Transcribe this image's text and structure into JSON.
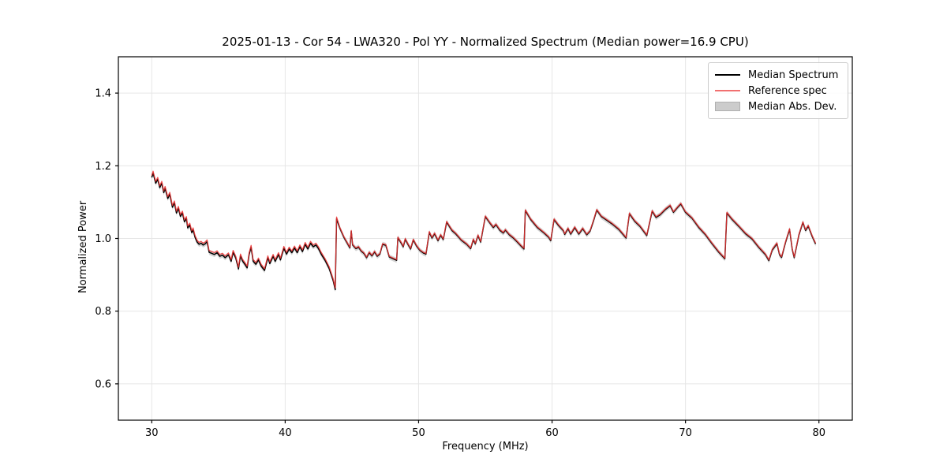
{
  "figure": {
    "title": "2025-01-13 - Cor 54 - LWA320 - Pol YY - Normalized Spectrum (Median power=16.9 CPU)"
  },
  "legend": {
    "items": [
      {
        "label": "Median Spectrum",
        "sample": "line",
        "color": "#000000"
      },
      {
        "label": "Reference spec",
        "sample": "line",
        "color": "#f17070"
      },
      {
        "label": "Median Abs. Dev.",
        "sample": "patch",
        "color": "#cccccc"
      }
    ]
  },
  "colors": {
    "median_line": "#000000",
    "reference_line": "#ee3333",
    "mad_band": "#bdbdbd",
    "grid": "#e6e6e6",
    "spine": "#000000",
    "background": "#ffffff"
  },
  "chart_data": {
    "type": "line",
    "title": "2025-01-13 - Cor 54 - LWA320 - Pol YY - Normalized Spectrum (Median power=16.9 CPU)",
    "xlabel": "Frequency (MHz)",
    "ylabel": "Normalized Power",
    "xlim": [
      27.5,
      82.5
    ],
    "ylim": [
      0.5,
      1.5
    ],
    "xticks": [
      30,
      40,
      50,
      60,
      70,
      80
    ],
    "yticks": [
      0.6,
      0.8,
      1.0,
      1.2,
      1.4
    ],
    "grid": true,
    "legend_position": "upper right",
    "series": [
      {
        "name": "Median Spectrum",
        "type": "line",
        "x": [
          30.0,
          30.1,
          30.3,
          30.45,
          30.6,
          30.75,
          30.9,
          31.0,
          31.2,
          31.35,
          31.55,
          31.7,
          31.85,
          32.0,
          32.15,
          32.3,
          32.45,
          32.6,
          32.7,
          32.85,
          33.0,
          33.1,
          33.25,
          33.4,
          33.55,
          33.7,
          33.85,
          34.0,
          34.15,
          34.3,
          34.5,
          34.7,
          34.9,
          35.1,
          35.3,
          35.5,
          35.75,
          35.95,
          36.1,
          36.3,
          36.5,
          36.65,
          36.8,
          37.0,
          37.15,
          37.3,
          37.45,
          37.6,
          37.8,
          38.0,
          38.2,
          38.45,
          38.7,
          38.85,
          39.1,
          39.25,
          39.5,
          39.65,
          39.9,
          40.1,
          40.3,
          40.5,
          40.7,
          40.9,
          41.1,
          41.3,
          41.5,
          41.7,
          41.9,
          42.1,
          42.3,
          42.5,
          42.7,
          43.0,
          43.3,
          43.6,
          43.75,
          43.85,
          44.1,
          44.4,
          44.7,
          44.85,
          44.95,
          45.05,
          45.3,
          45.5,
          45.7,
          45.9,
          46.1,
          46.3,
          46.5,
          46.7,
          46.9,
          47.1,
          47.3,
          47.55,
          47.8,
          48.1,
          48.35,
          48.45,
          48.7,
          48.85,
          49.0,
          49.2,
          49.4,
          49.6,
          49.85,
          50.1,
          50.35,
          50.55,
          50.8,
          51.0,
          51.2,
          51.45,
          51.65,
          51.85,
          52.1,
          52.5,
          52.8,
          53.2,
          53.6,
          53.9,
          54.1,
          54.25,
          54.45,
          54.65,
          55.0,
          55.35,
          55.6,
          55.8,
          56.1,
          56.35,
          56.5,
          56.8,
          57.1,
          57.4,
          57.7,
          57.9,
          58.0,
          58.4,
          58.9,
          59.4,
          59.75,
          59.9,
          60.15,
          60.5,
          60.85,
          60.95,
          61.2,
          61.4,
          61.7,
          62.0,
          62.3,
          62.6,
          62.85,
          63.1,
          63.35,
          63.7,
          64.1,
          64.5,
          65.0,
          65.55,
          65.8,
          66.2,
          66.6,
          67.1,
          67.5,
          67.8,
          68.1,
          68.5,
          68.85,
          69.1,
          69.4,
          69.65,
          70.0,
          70.5,
          71.0,
          71.5,
          72.0,
          72.5,
          72.95,
          73.1,
          73.5,
          74.0,
          74.5,
          75.0,
          75.5,
          76.0,
          76.25,
          76.5,
          76.85,
          77.05,
          77.2,
          77.5,
          77.8,
          78.0,
          78.15,
          78.5,
          78.8,
          79.0,
          79.2,
          79.5,
          79.75
        ],
        "y": [
          1.168,
          1.18,
          1.152,
          1.163,
          1.14,
          1.152,
          1.126,
          1.138,
          1.11,
          1.122,
          1.086,
          1.098,
          1.07,
          1.083,
          1.061,
          1.07,
          1.046,
          1.055,
          1.029,
          1.037,
          1.016,
          1.024,
          1.003,
          0.99,
          0.984,
          0.987,
          0.982,
          0.985,
          0.991,
          0.962,
          0.959,
          0.956,
          0.961,
          0.951,
          0.954,
          0.947,
          0.955,
          0.937,
          0.962,
          0.946,
          0.916,
          0.952,
          0.938,
          0.928,
          0.919,
          0.956,
          0.976,
          0.937,
          0.929,
          0.941,
          0.924,
          0.912,
          0.947,
          0.931,
          0.951,
          0.937,
          0.956,
          0.941,
          0.973,
          0.957,
          0.971,
          0.961,
          0.974,
          0.961,
          0.977,
          0.964,
          0.984,
          0.971,
          0.987,
          0.977,
          0.982,
          0.972,
          0.957,
          0.939,
          0.917,
          0.884,
          0.859,
          1.054,
          1.028,
          1.003,
          0.984,
          0.974,
          1.02,
          0.982,
          0.972,
          0.976,
          0.965,
          0.959,
          0.947,
          0.961,
          0.952,
          0.963,
          0.951,
          0.957,
          0.984,
          0.981,
          0.949,
          0.944,
          0.94,
          1.002,
          0.987,
          0.977,
          0.998,
          0.984,
          0.971,
          0.996,
          0.979,
          0.967,
          0.96,
          0.957,
          1.017,
          1.001,
          1.013,
          0.994,
          1.009,
          0.997,
          1.045,
          1.022,
          1.012,
          0.995,
          0.984,
          0.972,
          0.997,
          0.985,
          1.008,
          0.99,
          1.06,
          1.042,
          1.03,
          1.038,
          1.022,
          1.015,
          1.023,
          1.01,
          1.001,
          0.99,
          0.978,
          0.971,
          1.077,
          1.052,
          1.03,
          1.015,
          1.003,
          0.994,
          1.052,
          1.035,
          1.021,
          1.011,
          1.027,
          1.012,
          1.03,
          1.012,
          1.027,
          1.01,
          1.02,
          1.048,
          1.078,
          1.06,
          1.05,
          1.04,
          1.025,
          1.001,
          1.068,
          1.047,
          1.033,
          1.008,
          1.075,
          1.058,
          1.065,
          1.08,
          1.09,
          1.072,
          1.085,
          1.095,
          1.072,
          1.055,
          1.03,
          1.01,
          0.985,
          0.962,
          0.944,
          1.07,
          1.052,
          1.033,
          1.013,
          0.998,
          0.975,
          0.955,
          0.939,
          0.968,
          0.986,
          0.955,
          0.948,
          0.99,
          1.025,
          0.97,
          0.947,
          1.01,
          1.044,
          1.022,
          1.034,
          1.005,
          0.985
        ]
      },
      {
        "name": "Reference spec",
        "type": "line",
        "derived_from": "Median Spectrum",
        "offset_below_44mhz": 0.005,
        "offset_above_44mhz": 0.002
      },
      {
        "name": "Median Abs. Dev.",
        "type": "band",
        "around": "Median Spectrum",
        "halfwidth": 0.007
      }
    ]
  }
}
